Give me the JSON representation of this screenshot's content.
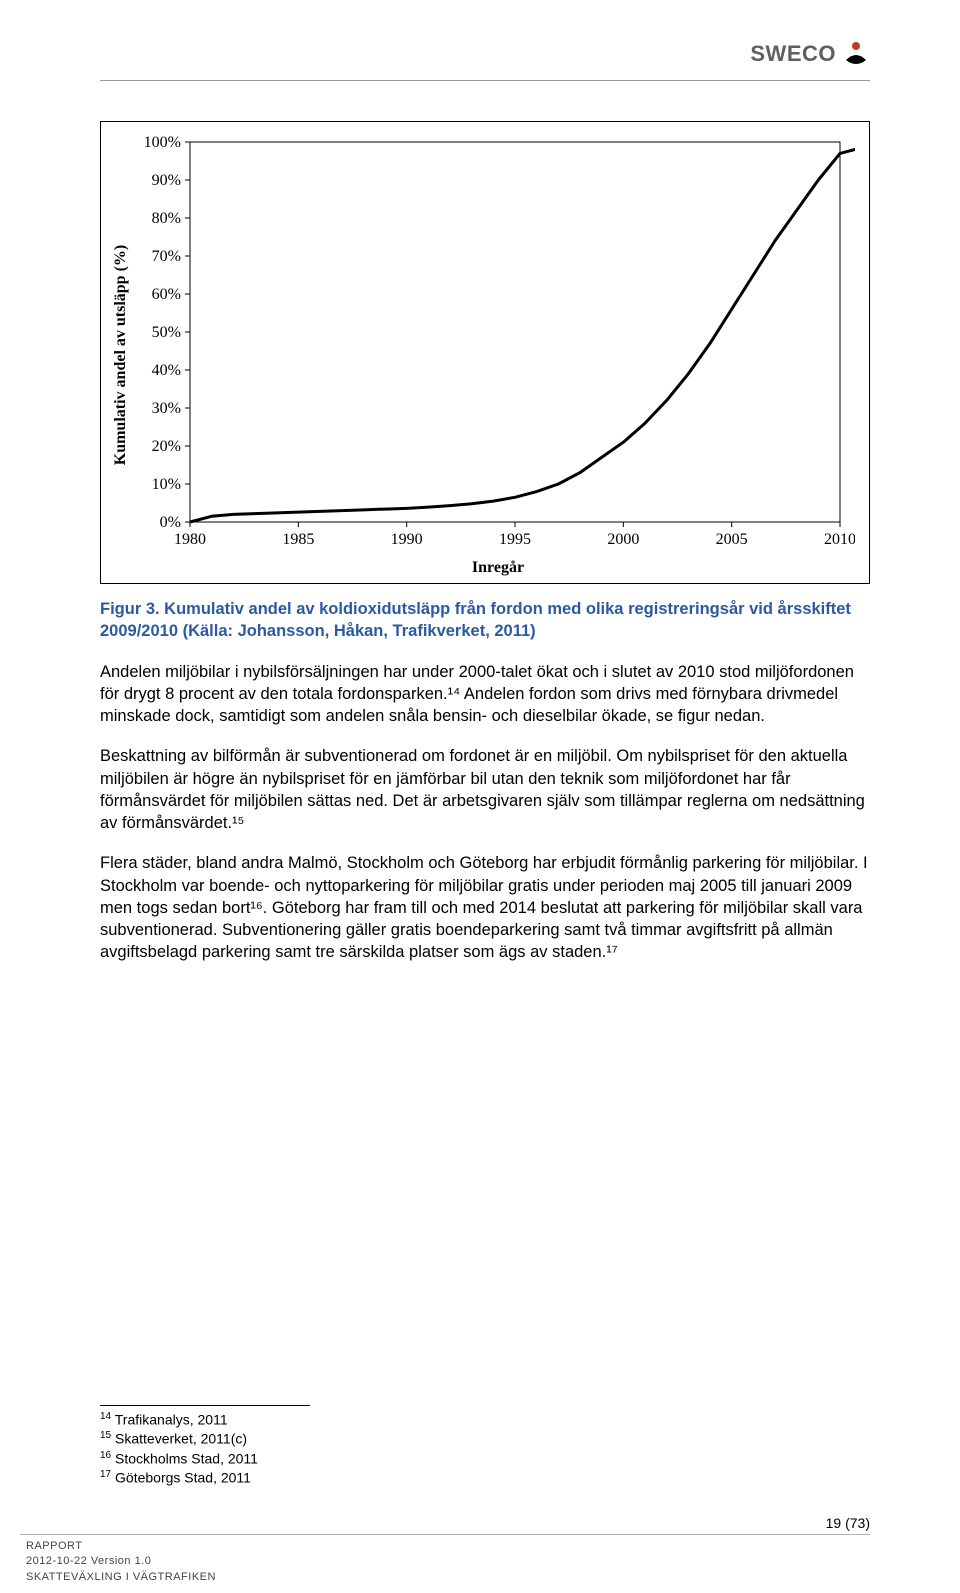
{
  "header": {
    "logo_text": "SWECO"
  },
  "chart": {
    "type": "line",
    "ylabel": "Kumulativ andel av utsläpp (%)",
    "xlabel": "Inregår",
    "x_ticks": [
      "1980",
      "1985",
      "1990",
      "1995",
      "2000",
      "2005",
      "2010"
    ],
    "y_ticks": [
      "0%",
      "10%",
      "20%",
      "30%",
      "40%",
      "50%",
      "60%",
      "70%",
      "80%",
      "90%",
      "100%"
    ],
    "x_domain": [
      1980,
      2010
    ],
    "y_domain": [
      0,
      100
    ],
    "series": {
      "color": "#000000",
      "stroke_width": 3,
      "points": [
        [
          1980,
          0
        ],
        [
          1981,
          1.5
        ],
        [
          1982,
          2
        ],
        [
          1983,
          2.2
        ],
        [
          1984,
          2.4
        ],
        [
          1985,
          2.6
        ],
        [
          1986,
          2.8
        ],
        [
          1987,
          3
        ],
        [
          1988,
          3.2
        ],
        [
          1989,
          3.4
        ],
        [
          1990,
          3.6
        ],
        [
          1991,
          3.9
        ],
        [
          1992,
          4.3
        ],
        [
          1993,
          4.8
        ],
        [
          1994,
          5.5
        ],
        [
          1995,
          6.5
        ],
        [
          1996,
          8
        ],
        [
          1997,
          10
        ],
        [
          1998,
          13
        ],
        [
          1999,
          17
        ],
        [
          2000,
          21
        ],
        [
          2001,
          26
        ],
        [
          2002,
          32
        ],
        [
          2003,
          39
        ],
        [
          2004,
          47
        ],
        [
          2005,
          56
        ],
        [
          2006,
          65
        ],
        [
          2007,
          74
        ],
        [
          2008,
          82
        ],
        [
          2009,
          90
        ],
        [
          2010,
          97
        ],
        [
          2011,
          98.5
        ]
      ]
    },
    "tick_color": "#000000",
    "tick_font_size": 16,
    "border_color": "#000000",
    "background": "#ffffff"
  },
  "caption": "Figur 3. Kumulativ andel av koldioxidutsläpp från fordon med olika registreringsår vid årsskiftet 2009/2010 (Källa: Johansson, Håkan, Trafikverket, 2011)",
  "paragraphs": {
    "p1": "Andelen miljöbilar i nybilsförsäljningen har under 2000-talet ökat och i slutet av 2010 stod miljöfordonen för drygt 8 procent av den totala fordonsparken.¹⁴ Andelen fordon som drivs med förnybara drivmedel minskade dock, samtidigt som andelen snåla bensin- och dieselbilar ökade, se figur nedan.",
    "p2": "Beskattning av bilförmån är subventionerad om fordonet är en miljöbil. Om nybilspriset för den aktuella miljöbilen är högre än nybilspriset för en jämförbar bil utan den teknik som miljöfordonet har får förmånsvärdet för miljöbilen sättas ned. Det är arbetsgivaren själv som tillämpar reglerna om nedsättning av förmånsvärdet.¹⁵",
    "p3": "Flera städer, bland andra Malmö, Stockholm och Göteborg har erbjudit förmånlig parkering för miljöbilar. I Stockholm var boende- och nyttoparkering för miljöbilar gratis under perioden maj 2005 till januari 2009 men togs sedan bort¹⁶. Göteborg har fram till och med 2014 beslutat att parkering för miljöbilar skall vara subventionerad. Subventionering gäller gratis boendeparkering samt två timmar avgiftsfritt på allmän avgiftsbelagd parkering samt tre särskilda platser som ägs av staden.¹⁷"
  },
  "footnotes": {
    "f14": "Trafikanalys, 2011",
    "f15": "Skatteverket, 2011(c)",
    "f16": "Stockholms Stad, 2011",
    "f17": "Göteborgs Stad, 2011"
  },
  "page_number": "19 (73)",
  "footer": {
    "l1": "RAPPORT",
    "l2": "2012-10-22 Version 1.0",
    "l3": "SKATTEVÄXLING I VÄGTRAFIKEN"
  }
}
